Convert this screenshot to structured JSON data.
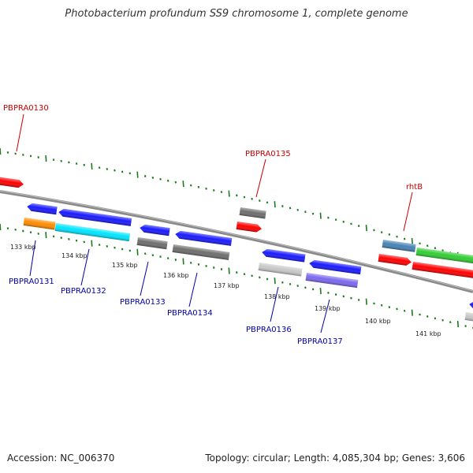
{
  "title": "Photobacterium profundum SS9 chromosome 1, complete genome",
  "footer": {
    "accession": "Accession: NC_006370",
    "summary": "Topology: circular; Length: 4,085,304 bp; Genes: 3,606"
  },
  "colors": {
    "backbone": "#8a8a8a",
    "ticks": "#1e7a1e",
    "label_top": "#cc0000",
    "label_bottom": "#0000aa",
    "tick_label": "#222222"
  },
  "ruler": {
    "labels": [
      "133 kbp",
      "134 kbp",
      "135 kbp",
      "136 kbp",
      "137 kbp",
      "138 kbp",
      "139 kbp",
      "140 kbp",
      "141 kbp"
    ]
  },
  "gene_labels_top": [
    "PBPRA0130",
    "PBPRA0135",
    "rhtB"
  ],
  "gene_labels_bottom": [
    "PBPRA0131",
    "PBPRA0132",
    "PBPRA0133",
    "PBPRA0134",
    "PBPRA0136",
    "PBPRA0137"
  ],
  "features": [
    {
      "name": "PBPRA0130",
      "color": "#ff0000",
      "shape": "arrow-right"
    },
    {
      "name": "PBPRA0131",
      "color": "#1a1aff",
      "shape": "arrow-left"
    },
    {
      "name": "PBPRA0131-cds",
      "color": "#ff8c00",
      "shape": "box"
    },
    {
      "name": "PBPRA0132",
      "color": "#1a1aff",
      "shape": "arrow-left"
    },
    {
      "name": "PBPRA0132-cds",
      "color": "#00e5ff",
      "shape": "box"
    },
    {
      "name": "PBPRA0133",
      "color": "#1a1aff",
      "shape": "arrow-left"
    },
    {
      "name": "PBPRA0133-cds",
      "color": "#6e6e6e",
      "shape": "box"
    },
    {
      "name": "PBPRA0134",
      "color": "#1a1aff",
      "shape": "arrow-left"
    },
    {
      "name": "PBPRA0134-cds",
      "color": "#6e6e6e",
      "shape": "box"
    },
    {
      "name": "PBPRA0135-cds",
      "color": "#6e6e6e",
      "shape": "box"
    },
    {
      "name": "PBPRA0135",
      "color": "#ff0000",
      "shape": "arrow-right"
    },
    {
      "name": "PBPRA0136",
      "color": "#1a1aff",
      "shape": "arrow-left"
    },
    {
      "name": "PBPRA0136-cds",
      "color": "#c8c8c8",
      "shape": "box"
    },
    {
      "name": "PBPRA0137",
      "color": "#1a1aff",
      "shape": "arrow-left"
    },
    {
      "name": "PBPRA0137-cds",
      "color": "#7b68ee",
      "shape": "box"
    },
    {
      "name": "rhtB-cds",
      "color": "#4682b4",
      "shape": "box"
    },
    {
      "name": "rhtB",
      "color": "#ff0000",
      "shape": "arrow-right"
    },
    {
      "name": "next-cds",
      "color": "#32cd32",
      "shape": "box"
    },
    {
      "name": "next-gene",
      "color": "#ff0000",
      "shape": "arrow-right"
    },
    {
      "name": "edge-gene",
      "color": "#1a1aff",
      "shape": "arrow-left"
    },
    {
      "name": "edge-cds",
      "color": "#c8c8c8",
      "shape": "box"
    }
  ]
}
